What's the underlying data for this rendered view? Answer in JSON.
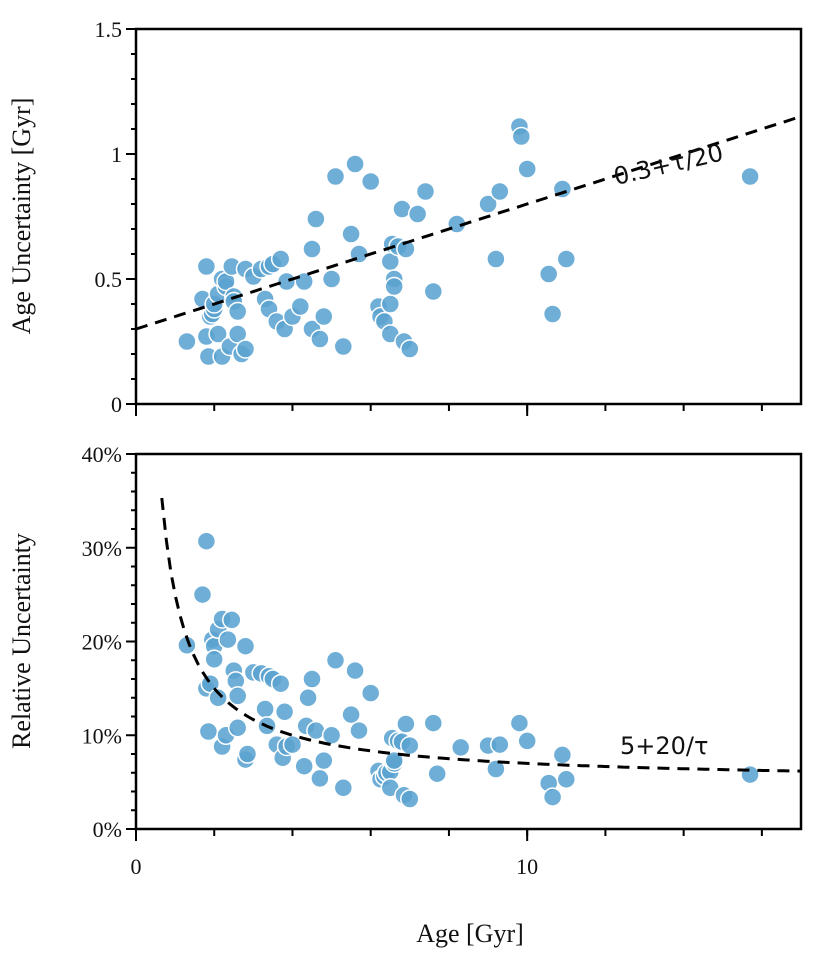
{
  "chart_data": [
    {
      "type": "scatter",
      "panel": "top",
      "xlabel": "Age [Gyr]",
      "ylabel": "Age Uncertainty [Gyr]",
      "xlim": [
        0,
        17
      ],
      "ylim": [
        0,
        1.5
      ],
      "x_ticks": [
        0,
        10
      ],
      "x_tick_labels": [
        "0",
        "10"
      ],
      "y_ticks": [
        0,
        0.5,
        1,
        1.5
      ],
      "y_tick_labels": [
        "0",
        "0.5",
        "1",
        "1.5"
      ],
      "annotation": "0.3+τ/20",
      "trend": {
        "kind": "linear",
        "intercept": 0.3,
        "slope": 0.05,
        "x_range": [
          0,
          17
        ]
      },
      "points": [
        [
          1.3,
          0.25
        ],
        [
          1.7,
          0.42
        ],
        [
          1.8,
          0.55
        ],
        [
          1.8,
          0.27
        ],
        [
          1.85,
          0.19
        ],
        [
          1.9,
          0.35
        ],
        [
          1.95,
          0.36
        ],
        [
          2.0,
          0.38
        ],
        [
          2.0,
          0.4
        ],
        [
          2.1,
          0.44
        ],
        [
          2.1,
          0.28
        ],
        [
          2.2,
          0.5
        ],
        [
          2.2,
          0.19
        ],
        [
          2.3,
          0.47
        ],
        [
          2.3,
          0.49
        ],
        [
          2.4,
          0.23
        ],
        [
          2.45,
          0.55
        ],
        [
          2.5,
          0.43
        ],
        [
          2.5,
          0.41
        ],
        [
          2.6,
          0.37
        ],
        [
          2.6,
          0.28
        ],
        [
          2.7,
          0.2
        ],
        [
          2.8,
          0.22
        ],
        [
          2.8,
          0.54
        ],
        [
          3.0,
          0.51
        ],
        [
          3.2,
          0.54
        ],
        [
          3.3,
          0.42
        ],
        [
          3.4,
          0.55
        ],
        [
          3.4,
          0.38
        ],
        [
          3.5,
          0.56
        ],
        [
          3.6,
          0.33
        ],
        [
          3.7,
          0.58
        ],
        [
          3.8,
          0.3
        ],
        [
          3.85,
          0.49
        ],
        [
          4.0,
          0.35
        ],
        [
          4.2,
          0.39
        ],
        [
          4.3,
          0.49
        ],
        [
          4.5,
          0.3
        ],
        [
          4.5,
          0.62
        ],
        [
          4.6,
          0.74
        ],
        [
          4.7,
          0.26
        ],
        [
          4.8,
          0.35
        ],
        [
          5.0,
          0.5
        ],
        [
          5.1,
          0.91
        ],
        [
          5.3,
          0.23
        ],
        [
          5.5,
          0.68
        ],
        [
          5.6,
          0.96
        ],
        [
          5.7,
          0.6
        ],
        [
          6.0,
          0.89
        ],
        [
          6.2,
          0.39
        ],
        [
          6.25,
          0.35
        ],
        [
          6.35,
          0.33
        ],
        [
          6.5,
          0.4
        ],
        [
          6.5,
          0.28
        ],
        [
          6.5,
          0.57
        ],
        [
          6.55,
          0.64
        ],
        [
          6.6,
          0.5
        ],
        [
          6.6,
          0.47
        ],
        [
          6.7,
          0.63
        ],
        [
          6.8,
          0.78
        ],
        [
          6.85,
          0.25
        ],
        [
          6.9,
          0.62
        ],
        [
          7.0,
          0.22
        ],
        [
          7.2,
          0.76
        ],
        [
          7.4,
          0.85
        ],
        [
          7.6,
          0.45
        ],
        [
          8.2,
          0.72
        ],
        [
          9.0,
          0.8
        ],
        [
          9.2,
          0.58
        ],
        [
          9.3,
          0.85
        ],
        [
          9.8,
          1.11
        ],
        [
          9.85,
          1.07
        ],
        [
          10.0,
          0.94
        ],
        [
          10.55,
          0.52
        ],
        [
          10.65,
          0.36
        ],
        [
          10.9,
          0.86
        ],
        [
          11.0,
          0.58
        ],
        [
          15.7,
          0.91
        ]
      ]
    },
    {
      "type": "scatter",
      "panel": "bottom",
      "xlabel": "Age [Gyr]",
      "ylabel": "Relative Uncertainty",
      "xlim": [
        0,
        17
      ],
      "ylim": [
        0,
        40
      ],
      "x_ticks": [
        0,
        10
      ],
      "x_tick_labels": [
        "0",
        "10"
      ],
      "y_ticks": [
        0,
        10,
        20,
        30,
        40
      ],
      "y_tick_labels": [
        "0%",
        "10%",
        "20%",
        "30%",
        "40%"
      ],
      "annotation": "5+20/τ",
      "trend": {
        "kind": "inverse",
        "constant": 5,
        "coefficient": 20,
        "x_range": [
          0.66,
          17
        ]
      },
      "points": [
        [
          1.3,
          19.6
        ],
        [
          1.7,
          25.0
        ],
        [
          1.8,
          30.7
        ],
        [
          1.8,
          15.0
        ],
        [
          1.85,
          10.4
        ],
        [
          1.9,
          15.5
        ],
        [
          1.95,
          20.2
        ],
        [
          2.0,
          19.5
        ],
        [
          2.0,
          18.1
        ],
        [
          2.1,
          14.0
        ],
        [
          2.1,
          21.3
        ],
        [
          2.2,
          8.8
        ],
        [
          2.2,
          22.4
        ],
        [
          2.3,
          10.0
        ],
        [
          2.35,
          20.2
        ],
        [
          2.45,
          22.3
        ],
        [
          2.5,
          16.9
        ],
        [
          2.55,
          15.8
        ],
        [
          2.6,
          14.2
        ],
        [
          2.6,
          10.8
        ],
        [
          2.8,
          19.5
        ],
        [
          2.8,
          7.4
        ],
        [
          2.85,
          8.0
        ],
        [
          3.0,
          16.7
        ],
        [
          3.2,
          16.6
        ],
        [
          3.3,
          12.8
        ],
        [
          3.35,
          11.0
        ],
        [
          3.4,
          16.3
        ],
        [
          3.5,
          16.0
        ],
        [
          3.6,
          9.0
        ],
        [
          3.7,
          15.5
        ],
        [
          3.75,
          7.6
        ],
        [
          3.8,
          12.5
        ],
        [
          3.85,
          8.8
        ],
        [
          4.0,
          9.0
        ],
        [
          4.3,
          6.7
        ],
        [
          4.35,
          11.0
        ],
        [
          4.4,
          14.0
        ],
        [
          4.5,
          16.0
        ],
        [
          4.6,
          10.5
        ],
        [
          4.7,
          5.4
        ],
        [
          4.8,
          7.3
        ],
        [
          5.0,
          10.0
        ],
        [
          5.1,
          18.0
        ],
        [
          5.3,
          4.4
        ],
        [
          5.5,
          12.2
        ],
        [
          5.6,
          16.9
        ],
        [
          5.7,
          10.5
        ],
        [
          6.0,
          14.5
        ],
        [
          6.2,
          6.2
        ],
        [
          6.25,
          5.3
        ],
        [
          6.35,
          5.6
        ],
        [
          6.4,
          6.0
        ],
        [
          6.5,
          6.1
        ],
        [
          6.5,
          4.4
        ],
        [
          6.55,
          9.7
        ],
        [
          6.6,
          7.0
        ],
        [
          6.6,
          7.3
        ],
        [
          6.7,
          9.4
        ],
        [
          6.8,
          9.3
        ],
        [
          6.85,
          3.6
        ],
        [
          6.9,
          11.2
        ],
        [
          7.0,
          8.9
        ],
        [
          7.0,
          3.2
        ],
        [
          7.6,
          11.3
        ],
        [
          7.7,
          5.9
        ],
        [
          8.3,
          8.7
        ],
        [
          9.0,
          8.9
        ],
        [
          9.2,
          6.4
        ],
        [
          9.3,
          9.0
        ],
        [
          9.8,
          11.3
        ],
        [
          10.0,
          9.4
        ],
        [
          10.55,
          4.9
        ],
        [
          10.65,
          3.4
        ],
        [
          10.9,
          7.9
        ],
        [
          11.0,
          5.3
        ],
        [
          15.7,
          5.8
        ]
      ]
    }
  ]
}
